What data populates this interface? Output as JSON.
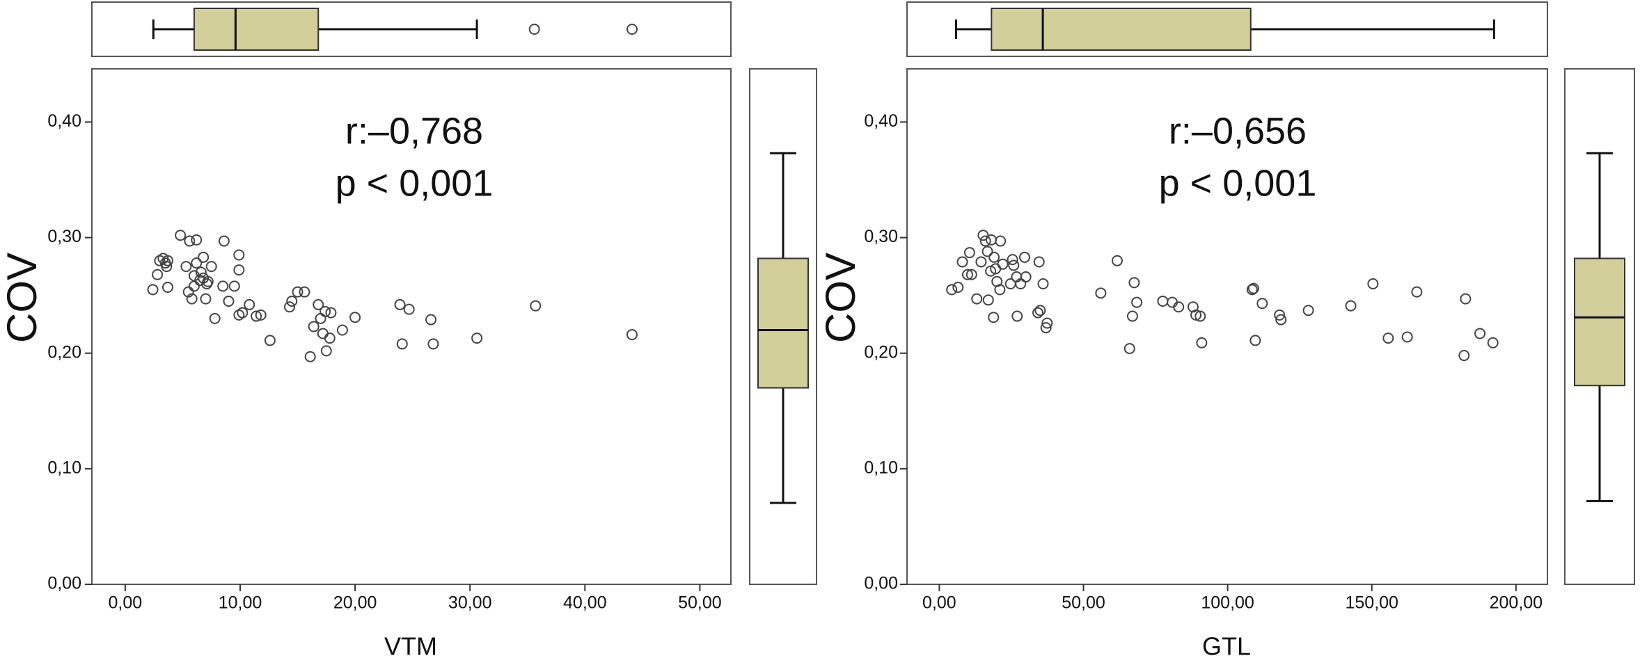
{
  "chart_data": [
    {
      "type": "scatter",
      "x_label": "VTM",
      "y_label": "COV",
      "annotations": [
        "r:–0,768",
        "p < 0,001"
      ],
      "marker_color": "#444444",
      "box_color": "#d3cf9a",
      "xlim": [
        -2.9,
        52.7
      ],
      "ylim": [
        0,
        0.446
      ],
      "xticks": [
        {
          "value": 0,
          "label": "0,00"
        },
        {
          "value": 10,
          "label": "10,00"
        },
        {
          "value": 20,
          "label": "20,00"
        },
        {
          "value": 30,
          "label": "30,00"
        },
        {
          "value": 40,
          "label": "40,00"
        },
        {
          "value": 50,
          "label": "50,00"
        }
      ],
      "yticks": [
        {
          "value": 0,
          "label": "0,00"
        },
        {
          "value": 0.1,
          "label": "0,10"
        },
        {
          "value": 0.2,
          "label": "0,20"
        },
        {
          "value": 0.3,
          "label": "0,30"
        },
        {
          "value": 0.4,
          "label": "0,40"
        }
      ],
      "x": [
        2.4,
        3.0,
        2.8,
        3.3,
        3.5,
        3.6,
        3.7,
        3.7,
        4.8,
        5.3,
        5.5,
        5.6,
        5.8,
        6.0,
        6.0,
        6.2,
        6.2,
        6.5,
        6.6,
        6.8,
        6.8,
        7.0,
        7.1,
        7.2,
        7.5,
        7.8,
        8.5,
        8.6,
        9.0,
        9.5,
        9.9,
        9.9,
        9.9,
        10.2,
        10.8,
        11.4,
        11.8,
        12.6,
        14.3,
        14.5,
        15.0,
        15.6,
        16.1,
        16.4,
        16.8,
        17.0,
        17.2,
        17.4,
        17.5,
        17.8,
        17.9,
        18.9,
        20.0,
        23.9,
        24.1,
        24.7,
        26.6,
        26.8,
        30.6,
        35.7,
        44.1
      ],
      "values": [
        0.255,
        0.28,
        0.268,
        0.282,
        0.278,
        0.275,
        0.28,
        0.257,
        0.302,
        0.275,
        0.253,
        0.297,
        0.247,
        0.267,
        0.258,
        0.278,
        0.298,
        0.263,
        0.27,
        0.265,
        0.283,
        0.247,
        0.26,
        0.262,
        0.275,
        0.23,
        0.258,
        0.297,
        0.245,
        0.258,
        0.285,
        0.272,
        0.233,
        0.235,
        0.242,
        0.232,
        0.233,
        0.211,
        0.24,
        0.245,
        0.253,
        0.253,
        0.197,
        0.223,
        0.242,
        0.23,
        0.217,
        0.236,
        0.202,
        0.213,
        0.235,
        0.22,
        0.231,
        0.242,
        0.208,
        0.238,
        0.229,
        0.208,
        0.213,
        0.241,
        0.216
      ],
      "x_box": {
        "whisker_low": 2.45,
        "q1": 6.0,
        "median": 9.6,
        "q3": 16.8,
        "whisker_high": 30.6,
        "outliers": [
          35.6,
          44.1
        ]
      },
      "y_box": {
        "whisker_low": 0.0704,
        "q1": 0.17,
        "median": 0.22,
        "q3": 0.282,
        "whisker_high": 0.373,
        "outliers": []
      }
    },
    {
      "type": "scatter",
      "x_label": "GTL",
      "y_label": "COV",
      "annotations": [
        "r:–0,656",
        "p < 0,001"
      ],
      "marker_color": "#444444",
      "box_color": "#d3cf9a",
      "xlim": [
        -11.2,
        210.9
      ],
      "ylim": [
        0,
        0.446
      ],
      "xticks": [
        {
          "value": 0,
          "label": "0,00"
        },
        {
          "value": 50,
          "label": "50,00"
        },
        {
          "value": 100,
          "label": "100,00"
        },
        {
          "value": 150,
          "label": "150,00"
        },
        {
          "value": 200,
          "label": "200,00"
        }
      ],
      "yticks": [
        {
          "value": 0,
          "label": "0,00"
        },
        {
          "value": 0.1,
          "label": "0,10"
        },
        {
          "value": 0.2,
          "label": "0,20"
        },
        {
          "value": 0.3,
          "label": "0,30"
        },
        {
          "value": 0.4,
          "label": "0,40"
        }
      ],
      "x": [
        4.3,
        6.5,
        8,
        9.8,
        10.5,
        11.2,
        13,
        14.5,
        15.2,
        16,
        16.7,
        17,
        17.8,
        18,
        18.8,
        19,
        19.5,
        20,
        21,
        21.2,
        22,
        24.7,
        25.4,
        25.8,
        26.8,
        27,
        28.2,
        29.6,
        30,
        34.2,
        34.6,
        35,
        36,
        37,
        37.4,
        56,
        61.7,
        66,
        67,
        67.6,
        68.5,
        77.5,
        80.8,
        83,
        88,
        89,
        90.5,
        91,
        108.5,
        109,
        109.6,
        112,
        118,
        118.5,
        128,
        142.7,
        150.4,
        155.7,
        162.3,
        165.6,
        182,
        182.5,
        187.5,
        192
      ],
      "values": [
        0.255,
        0.257,
        0.279,
        0.268,
        0.287,
        0.268,
        0.247,
        0.279,
        0.302,
        0.297,
        0.288,
        0.246,
        0.271,
        0.298,
        0.231,
        0.283,
        0.273,
        0.262,
        0.255,
        0.297,
        0.277,
        0.26,
        0.281,
        0.276,
        0.266,
        0.232,
        0.26,
        0.283,
        0.266,
        0.235,
        0.279,
        0.237,
        0.26,
        0.222,
        0.226,
        0.252,
        0.28,
        0.204,
        0.232,
        0.261,
        0.244,
        0.245,
        0.244,
        0.24,
        0.24,
        0.233,
        0.232,
        0.209,
        0.255,
        0.256,
        0.211,
        0.243,
        0.233,
        0.229,
        0.237,
        0.241,
        0.26,
        0.213,
        0.214,
        0.253,
        0.198,
        0.247,
        0.217,
        0.209
      ],
      "x_box": {
        "whisker_low": 5.8,
        "q1": 18.1,
        "median": 35.9,
        "q3": 108,
        "whisker_high": 192.4,
        "outliers": []
      },
      "y_box": {
        "whisker_low": 0.072,
        "q1": 0.172,
        "median": 0.231,
        "q3": 0.282,
        "whisker_high": 0.373,
        "outliers": []
      }
    }
  ]
}
